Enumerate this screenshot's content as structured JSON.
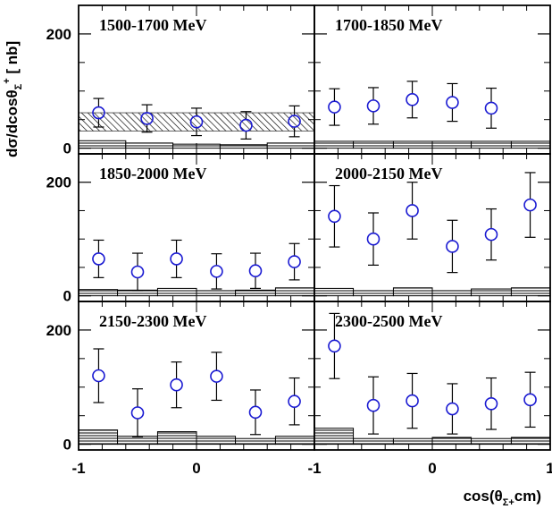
{
  "chart_data": {
    "type": "scatter",
    "xlabel": "cos(θ",
    "xlabel_sub": "Σ+",
    "xlabel_end": "cm)",
    "ylabel": "dσ/dcosθ",
    "ylabel_sub": "Σ",
    "ylabel_sup": "+",
    "ylabel_end": " [ nb]",
    "xlim": [
      -1,
      1
    ],
    "ylim": [
      -10,
      250
    ],
    "yticks": [
      0,
      200
    ],
    "yticks_minor": [
      50,
      100,
      150
    ],
    "xticks_left": [
      "-1",
      "0"
    ],
    "xticks_right": [
      "-1",
      "0",
      "1"
    ],
    "marker_color": "#1a1ad2",
    "panels": [
      {
        "title": "1500-1700 MeV",
        "points": [
          {
            "x": -0.83,
            "y": 62,
            "err": 25
          },
          {
            "x": -0.42,
            "y": 52,
            "err": 24
          },
          {
            "x": 0.0,
            "y": 46,
            "err": 24
          },
          {
            "x": 0.42,
            "y": 40,
            "err": 24
          },
          {
            "x": 0.83,
            "y": 47,
            "err": 27
          }
        ],
        "band": {
          "low": 30,
          "high": 62
        },
        "sys": [
          {
            "x0": -1.0,
            "x1": -0.6,
            "h": 13
          },
          {
            "x0": -0.6,
            "x1": -0.2,
            "h": 9
          },
          {
            "x0": -0.2,
            "x1": 0.2,
            "h": 7
          },
          {
            "x0": 0.2,
            "x1": 0.6,
            "h": 6
          },
          {
            "x0": 0.6,
            "x1": 1.0,
            "h": 9
          }
        ]
      },
      {
        "title": "1700-1850 MeV",
        "points": [
          {
            "x": -0.83,
            "y": 72,
            "err": 32
          },
          {
            "x": -0.5,
            "y": 74,
            "err": 32
          },
          {
            "x": -0.17,
            "y": 85,
            "err": 32
          },
          {
            "x": 0.17,
            "y": 80,
            "err": 33
          },
          {
            "x": 0.5,
            "y": 70,
            "err": 35
          }
        ],
        "sys": [
          {
            "x0": -1.0,
            "x1": -0.67,
            "h": 12
          },
          {
            "x0": -0.67,
            "x1": -0.33,
            "h": 12
          },
          {
            "x0": -0.33,
            "x1": 0.0,
            "h": 12
          },
          {
            "x0": 0.0,
            "x1": 0.33,
            "h": 12
          },
          {
            "x0": 0.33,
            "x1": 0.67,
            "h": 12
          },
          {
            "x0": 0.67,
            "x1": 1.0,
            "h": 12
          }
        ]
      },
      {
        "title": "1850-2000 MeV",
        "points": [
          {
            "x": -0.83,
            "y": 65,
            "err": 33
          },
          {
            "x": -0.5,
            "y": 42,
            "err": 33
          },
          {
            "x": -0.17,
            "y": 65,
            "err": 33
          },
          {
            "x": 0.17,
            "y": 43,
            "err": 31
          },
          {
            "x": 0.5,
            "y": 44,
            "err": 31
          },
          {
            "x": 0.83,
            "y": 60,
            "err": 32
          }
        ],
        "sys": [
          {
            "x0": -1.0,
            "x1": -0.67,
            "h": 11
          },
          {
            "x0": -0.67,
            "x1": -0.33,
            "h": 10
          },
          {
            "x0": -0.33,
            "x1": 0.0,
            "h": 13
          },
          {
            "x0": 0.0,
            "x1": 0.33,
            "h": 9
          },
          {
            "x0": 0.33,
            "x1": 0.67,
            "h": 10
          },
          {
            "x0": 0.67,
            "x1": 1.0,
            "h": 14
          }
        ]
      },
      {
        "title": "2000-2150 MeV",
        "points": [
          {
            "x": -0.83,
            "y": 140,
            "err": 54
          },
          {
            "x": -0.5,
            "y": 100,
            "err": 46
          },
          {
            "x": -0.17,
            "y": 150,
            "err": 50
          },
          {
            "x": 0.17,
            "y": 87,
            "err": 46
          },
          {
            "x": 0.5,
            "y": 108,
            "err": 45
          },
          {
            "x": 0.83,
            "y": 160,
            "err": 57
          }
        ],
        "sys": [
          {
            "x0": -1.0,
            "x1": -0.67,
            "h": 13
          },
          {
            "x0": -0.67,
            "x1": -0.33,
            "h": 9
          },
          {
            "x0": -0.33,
            "x1": 0.0,
            "h": 14
          },
          {
            "x0": 0.0,
            "x1": 0.33,
            "h": 9
          },
          {
            "x0": 0.33,
            "x1": 0.67,
            "h": 12
          },
          {
            "x0": 0.67,
            "x1": 1.0,
            "h": 14
          }
        ]
      },
      {
        "title": "2150-2300 MeV",
        "points": [
          {
            "x": -0.83,
            "y": 120,
            "err": 47
          },
          {
            "x": -0.5,
            "y": 55,
            "err": 42
          },
          {
            "x": -0.17,
            "y": 104,
            "err": 40
          },
          {
            "x": 0.17,
            "y": 119,
            "err": 42
          },
          {
            "x": 0.5,
            "y": 56,
            "err": 39
          },
          {
            "x": 0.83,
            "y": 75,
            "err": 41
          }
        ],
        "sys": [
          {
            "x0": -1.0,
            "x1": -0.67,
            "h": 25
          },
          {
            "x0": -0.67,
            "x1": -0.33,
            "h": 14
          },
          {
            "x0": -0.33,
            "x1": 0.0,
            "h": 22
          },
          {
            "x0": 0.0,
            "x1": 0.33,
            "h": 14
          },
          {
            "x0": 0.33,
            "x1": 0.67,
            "h": 10
          },
          {
            "x0": 0.67,
            "x1": 1.0,
            "h": 14
          }
        ]
      },
      {
        "title": "2300-2500 MeV",
        "points": [
          {
            "x": -0.83,
            "y": 172,
            "err": 57
          },
          {
            "x": -0.5,
            "y": 68,
            "err": 50
          },
          {
            "x": -0.17,
            "y": 76,
            "err": 48
          },
          {
            "x": 0.17,
            "y": 62,
            "err": 44
          },
          {
            "x": 0.5,
            "y": 71,
            "err": 45
          },
          {
            "x": 0.83,
            "y": 78,
            "err": 48
          }
        ],
        "sys": [
          {
            "x0": -1.0,
            "x1": -0.67,
            "h": 28
          },
          {
            "x0": -0.67,
            "x1": -0.33,
            "h": 10
          },
          {
            "x0": -0.33,
            "x1": 0.0,
            "h": 10
          },
          {
            "x0": 0.0,
            "x1": 0.33,
            "h": 12
          },
          {
            "x0": 0.33,
            "x1": 0.67,
            "h": 10
          },
          {
            "x0": 0.67,
            "x1": 1.0,
            "h": 12
          }
        ]
      }
    ]
  }
}
